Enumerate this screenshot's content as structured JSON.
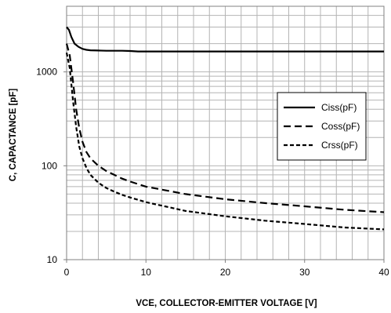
{
  "chart_data": {
    "type": "line",
    "title": "",
    "xlabel": "VCE, COLLECTOR-EMITTER  VOLTAGE [V]",
    "ylabel": "C, CAPACTANCE [pF]",
    "xlim": [
      0,
      40
    ],
    "ylim": [
      10,
      5000
    ],
    "yscale": "log",
    "grid": true,
    "x_ticks": [
      "0",
      "10",
      "20",
      "30",
      "40"
    ],
    "y_ticks": [
      "10",
      "100",
      "1000"
    ],
    "legend_position": "right",
    "series": [
      {
        "name": "Ciss(pF)",
        "style": "solid",
        "x": [
          0,
          0.3,
          0.6,
          1.0,
          1.5,
          2.0,
          2.5,
          3,
          4,
          5,
          6,
          7,
          8,
          9,
          10,
          15,
          20,
          25,
          30,
          35,
          40
        ],
        "y": [
          3000,
          2800,
          2350,
          2000,
          1850,
          1760,
          1720,
          1700,
          1690,
          1680,
          1680,
          1680,
          1670,
          1650,
          1650,
          1650,
          1650,
          1650,
          1650,
          1650,
          1650
        ]
      },
      {
        "name": "Coss(pF)",
        "style": "dashed",
        "x": [
          0,
          0.4,
          0.8,
          1.2,
          1.6,
          2.0,
          2.5,
          3,
          4,
          5,
          6,
          7,
          8,
          10,
          15,
          20,
          25,
          30,
          35,
          40
        ],
        "y": [
          2000,
          1500,
          800,
          400,
          250,
          180,
          140,
          120,
          100,
          88,
          80,
          73,
          68,
          60,
          50,
          44,
          40,
          37,
          34,
          32
        ]
      },
      {
        "name": "Crss(pF)",
        "style": "dotted-dash",
        "x": [
          0,
          0.4,
          0.8,
          1.2,
          1.6,
          2.0,
          2.5,
          3,
          4,
          5,
          6,
          7,
          8,
          10,
          15,
          20,
          25,
          30,
          35,
          40
        ],
        "y": [
          1600,
          1100,
          500,
          260,
          160,
          120,
          95,
          80,
          66,
          58,
          53,
          49,
          46,
          41,
          33,
          29,
          26,
          24,
          22,
          21
        ]
      }
    ]
  }
}
